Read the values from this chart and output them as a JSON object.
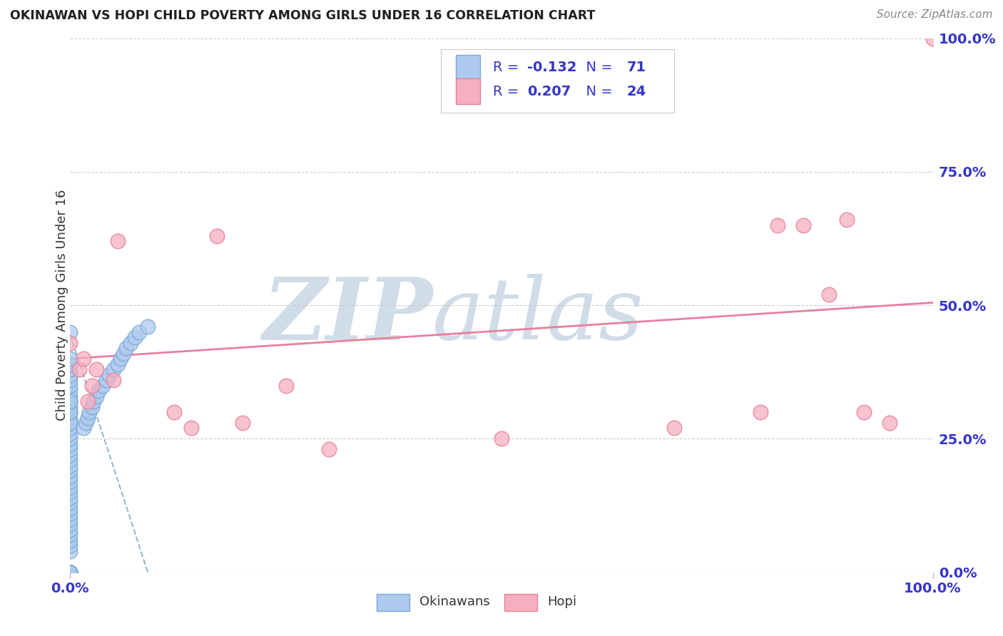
{
  "title": "OKINAWAN VS HOPI CHILD POVERTY AMONG GIRLS UNDER 16 CORRELATION CHART",
  "source": "Source: ZipAtlas.com",
  "ylabel": "Child Poverty Among Girls Under 16",
  "legend_label1": "Okinawans",
  "legend_label2": "Hopi",
  "r1": -0.132,
  "n1": 71,
  "r2": 0.207,
  "n2": 24,
  "color_okinawan_fill": "#aec9ee",
  "color_okinawan_edge": "#7aaad4",
  "color_hopi_fill": "#f5afc0",
  "color_hopi_edge": "#e8809a",
  "color_trend_hopi": "#e8809a",
  "color_trend_okinawan": "#90b8d8",
  "color_title": "#202020",
  "color_r_values": "#3535cc",
  "color_axis_labels": "#3535cc",
  "color_grid": "#cccccc",
  "color_watermark": "#d0dde8",
  "watermark_zip": "ZIP",
  "watermark_atlas": "atlas",
  "okinawan_x": [
    0.0,
    0.0,
    0.0,
    0.0,
    0.0,
    0.0,
    0.0,
    0.0,
    0.0,
    0.0,
    0.0,
    0.0,
    0.0,
    0.0,
    0.0,
    0.0,
    0.0,
    0.0,
    0.0,
    0.0,
    0.0,
    0.0,
    0.0,
    0.0,
    0.0,
    0.0,
    0.0,
    0.0,
    0.0,
    0.0,
    0.0,
    0.0,
    0.0,
    0.0,
    0.0,
    0.0,
    0.0,
    0.0,
    0.0,
    0.0,
    0.0,
    0.0,
    0.0,
    0.0,
    0.0,
    0.0,
    0.0,
    0.0,
    0.0,
    0.0,
    0.0,
    0.015,
    0.018,
    0.02,
    0.022,
    0.025,
    0.027,
    0.03,
    0.033,
    0.038,
    0.042,
    0.045,
    0.05,
    0.055,
    0.058,
    0.062,
    0.065,
    0.07,
    0.075,
    0.08,
    0.09
  ],
  "okinawan_y": [
    0.0,
    0.0,
    0.0,
    0.0,
    0.0,
    0.0,
    0.0,
    0.0,
    0.0,
    0.0,
    0.04,
    0.05,
    0.06,
    0.07,
    0.08,
    0.09,
    0.1,
    0.11,
    0.12,
    0.13,
    0.14,
    0.15,
    0.16,
    0.17,
    0.18,
    0.19,
    0.2,
    0.21,
    0.22,
    0.23,
    0.24,
    0.25,
    0.26,
    0.27,
    0.28,
    0.29,
    0.3,
    0.31,
    0.32,
    0.33,
    0.34,
    0.35,
    0.36,
    0.37,
    0.38,
    0.39,
    0.4,
    0.28,
    0.3,
    0.32,
    0.45,
    0.27,
    0.28,
    0.29,
    0.3,
    0.31,
    0.32,
    0.33,
    0.34,
    0.35,
    0.36,
    0.37,
    0.38,
    0.39,
    0.4,
    0.41,
    0.42,
    0.43,
    0.44,
    0.45,
    0.46
  ],
  "hopi_x": [
    0.0,
    0.01,
    0.015,
    0.02,
    0.025,
    0.03,
    0.05,
    0.055,
    0.12,
    0.14,
    0.17,
    0.2,
    0.25,
    0.3,
    0.5,
    0.7,
    0.8,
    0.82,
    0.85,
    0.88,
    0.9,
    0.92,
    0.95,
    1.0
  ],
  "hopi_y": [
    0.43,
    0.38,
    0.4,
    0.32,
    0.35,
    0.38,
    0.36,
    0.62,
    0.3,
    0.27,
    0.63,
    0.28,
    0.35,
    0.23,
    0.25,
    0.27,
    0.3,
    0.65,
    0.65,
    0.52,
    0.66,
    0.3,
    0.28,
    1.0
  ],
  "hopi_trend": [
    0.0,
    1.0,
    0.4,
    0.505
  ],
  "okinawan_trend": [
    0.0,
    0.09,
    0.445,
    0.0
  ],
  "xlim": [
    0.0,
    1.0
  ],
  "ylim": [
    0.0,
    1.0
  ],
  "yticks": [
    0.0,
    0.25,
    0.5,
    0.75,
    1.0
  ],
  "ytick_labels": [
    "0.0%",
    "25.0%",
    "50.0%",
    "75.0%",
    "100.0%"
  ],
  "xtick_labels_bottom": [
    "0.0%",
    "100.0%"
  ]
}
